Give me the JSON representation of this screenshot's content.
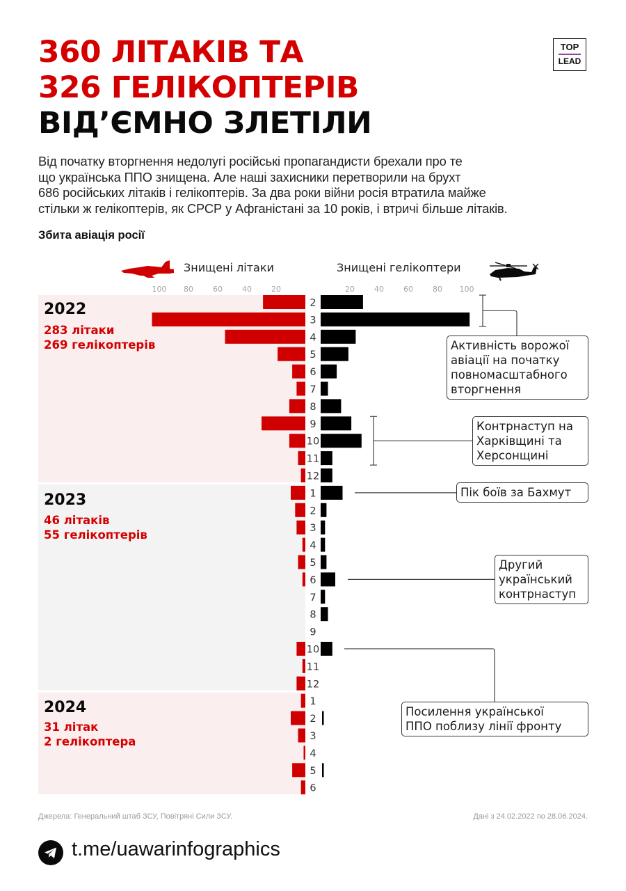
{
  "header": {
    "title_line1": "360 ЛІТАКІВ ТА",
    "title_line2": "326 ГЕЛІКОПТЕРІВ",
    "title_line3": "ВІД’ЄМНО ЗЛЕТІЛИ",
    "logo_top": "TOP",
    "logo_bottom": "LEAD"
  },
  "intro": {
    "lines": [
      "Від початку вторгнення недолугі російські пропагандисти брехали про те",
      "що українська ППО знищена. Але наші захисники перетворили на брухт",
      "686 російських літаків і гелікоптерів. За два роки війни росія втратила майже",
      "стільки ж гелікоптерів, як СРСР у Афганістані за 10 років, і втричі більше літаків."
    ]
  },
  "colors": {
    "planes": "#d10000",
    "helicopters": "#000000",
    "block_2022": "#fbeeef",
    "block_2023": "#f3f3f3",
    "block_2024": "#fbeeef",
    "title_red": "#d40000"
  },
  "chart_data": {
    "type": "bar",
    "orientation": "horizontal-diverging",
    "title": "Збита авіація росії",
    "legend": {
      "left": "Знищені літаки",
      "right": "Знищені гелікоптери",
      "left_icon": "jet-plane-icon",
      "right_icon": "helicopter-icon"
    },
    "left_ticks": [
      "100",
      "80",
      "60",
      "40",
      "20"
    ],
    "right_ticks": [
      "20",
      "40",
      "60",
      "80",
      "100"
    ],
    "xlim": [
      0,
      110
    ],
    "years": [
      {
        "year": "2022",
        "planes_total": "283 літаки",
        "helicopters_total": "269 гелікоптерів",
        "months": [
          "2",
          "3",
          "4",
          "5",
          "6",
          "7",
          "8",
          "9",
          "10",
          "11",
          "12"
        ],
        "planes": [
          29,
          105,
          55,
          19,
          9,
          6,
          11,
          30,
          11,
          5,
          3
        ],
        "helicopters": [
          29,
          102,
          24,
          19,
          11,
          5,
          14,
          21,
          28,
          8,
          8
        ]
      },
      {
        "year": "2023",
        "planes_total": "46 літаків",
        "helicopters_total": "55 гелікоптерів",
        "months": [
          "1",
          "2",
          "3",
          "4",
          "5",
          "6",
          "7",
          "8",
          "9",
          "10",
          "11",
          "12"
        ],
        "planes": [
          10,
          7,
          6,
          2,
          5,
          2,
          0,
          0,
          0,
          6,
          2,
          6
        ],
        "helicopters": [
          15,
          4,
          3,
          3,
          4,
          10,
          3,
          5,
          0,
          8,
          0,
          0
        ]
      },
      {
        "year": "2024",
        "planes_total": "31 літак",
        "helicopters_total": "2 гелікоптера",
        "months": [
          "1",
          "2",
          "3",
          "4",
          "5",
          "6"
        ],
        "planes": [
          3,
          10,
          5,
          1,
          9,
          3
        ],
        "helicopters": [
          0,
          1,
          0,
          0,
          1,
          0
        ]
      }
    ],
    "annotations": [
      {
        "text_lines": [
          "Активність ворожої",
          "авіації на початку",
          "повномасштабного",
          "вторгнення"
        ],
        "year": "2022",
        "months": [
          "2",
          "3"
        ]
      },
      {
        "text_lines": [
          "Контрнаступ на",
          "Харківщині та",
          "Херсонщині"
        ],
        "year": "2022",
        "months": [
          "9",
          "11"
        ]
      },
      {
        "text_lines": [
          "Пік боїв за Бахмут"
        ],
        "year": "2023",
        "months": [
          "1"
        ]
      },
      {
        "text_lines": [
          "Другий",
          "український",
          "контрнаступ"
        ],
        "year": "2023",
        "months": [
          "6"
        ]
      },
      {
        "text_lines": [
          "Посилення української",
          "ППО поблизу лінії фронту"
        ],
        "year": "2023",
        "months": [
          "10"
        ]
      }
    ]
  },
  "footer": {
    "sources": "Джерела: Генеральний штаб ЗСУ, Повітряні Сили ЗСУ.",
    "date_range": "Дані з 24.02.2022 по 28.06.2024.",
    "telegram_link": "t.me/uawarinfographics"
  }
}
